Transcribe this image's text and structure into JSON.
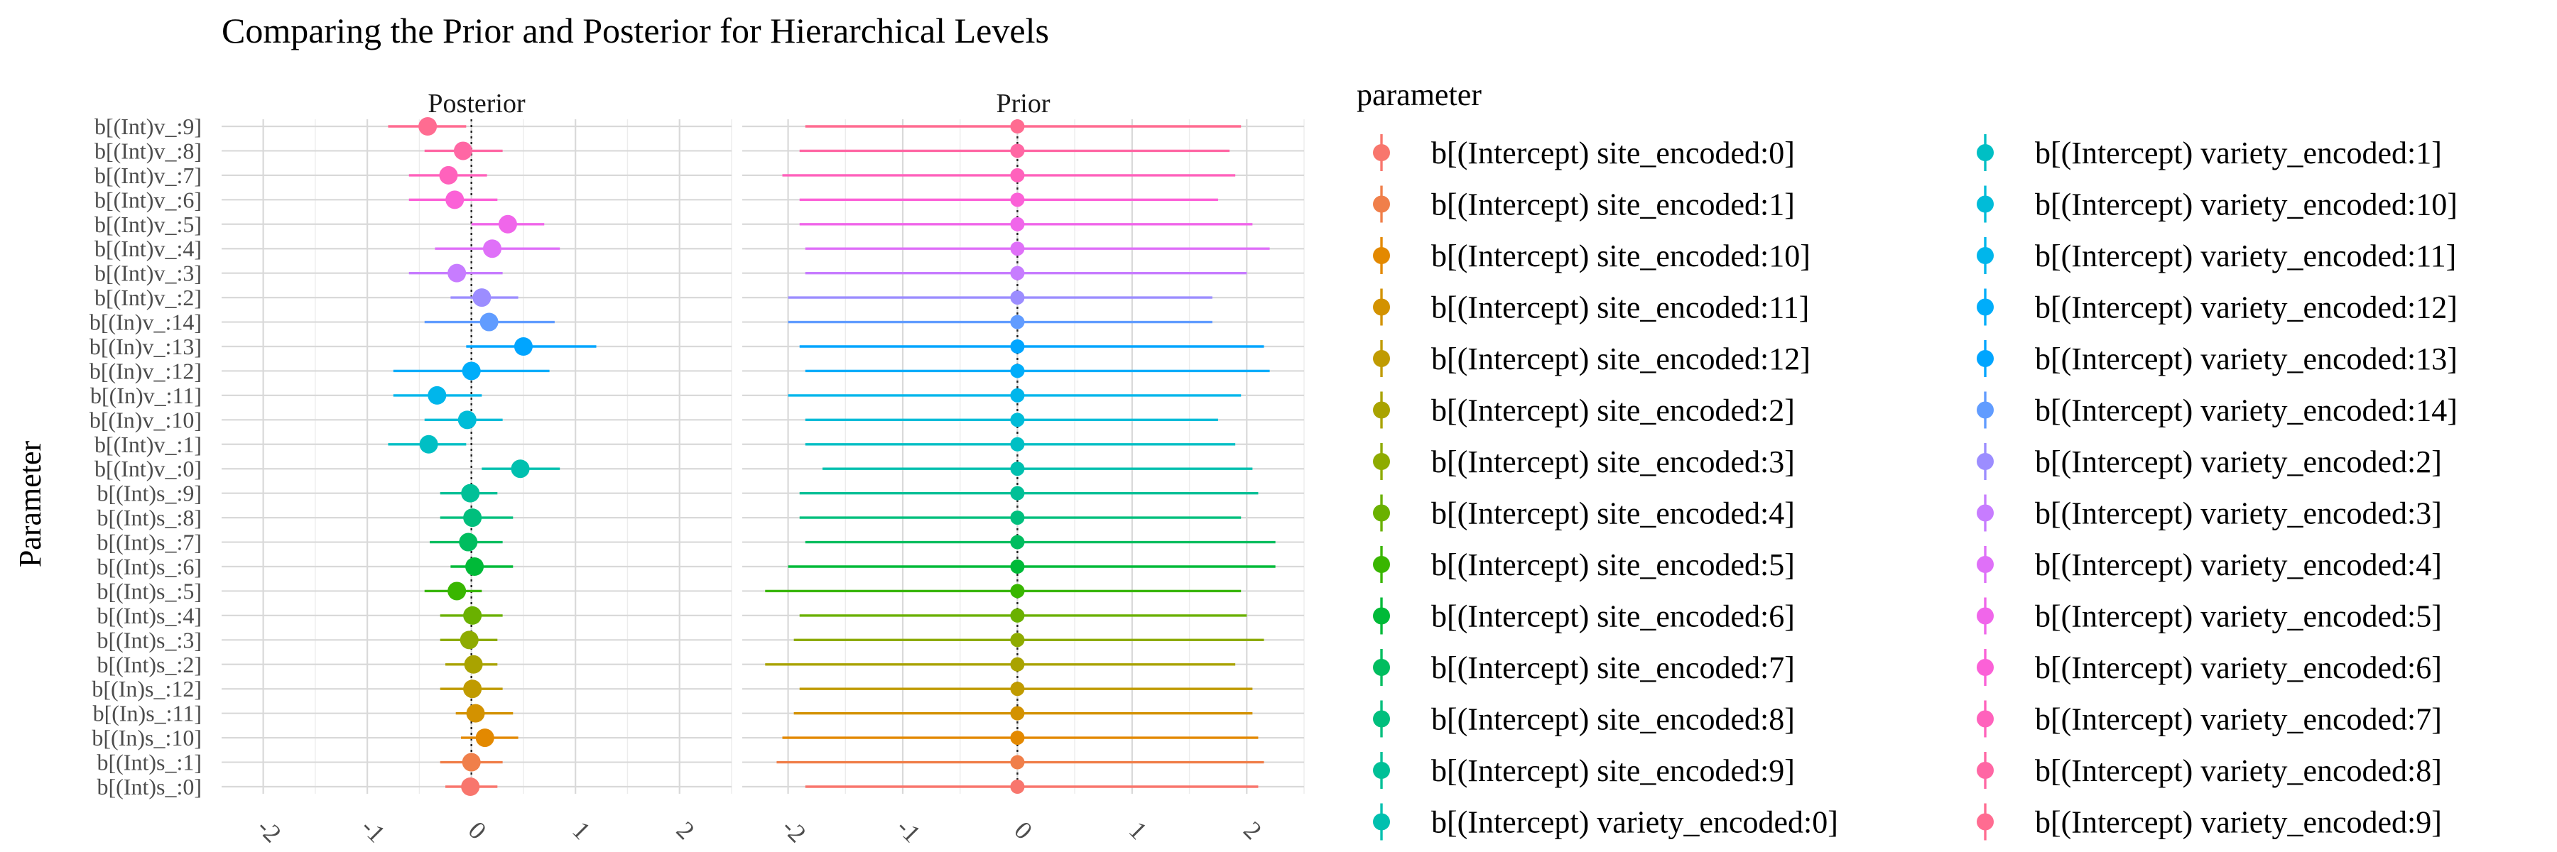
{
  "title": "Comparing the Prior and Posterior for Hierarchical Levels",
  "chart_data": {
    "type": "scatter",
    "title": "Comparing the Prior and Posterior for Hierarchical Levels",
    "ylabel": "Parameter",
    "xlim": [
      -2.4,
      2.5
    ],
    "xticks": [
      "-2",
      "-1",
      "0",
      "1",
      "2"
    ],
    "xtick_values": [
      -2,
      -1,
      0,
      1,
      2
    ],
    "reference_line": 0,
    "grid": true,
    "legend_title": "parameter",
    "legend_position": "right",
    "rows": [
      {
        "label": "b[(Int)v_:9]",
        "param": "b[(Intercept) variety_encoded:9]"
      },
      {
        "label": "b[(Int)v_:8]",
        "param": "b[(Intercept) variety_encoded:8]"
      },
      {
        "label": "b[(Int)v_:7]",
        "param": "b[(Intercept) variety_encoded:7]"
      },
      {
        "label": "b[(Int)v_:6]",
        "param": "b[(Intercept) variety_encoded:6]"
      },
      {
        "label": "b[(Int)v_:5]",
        "param": "b[(Intercept) variety_encoded:5]"
      },
      {
        "label": "b[(Int)v_:4]",
        "param": "b[(Intercept) variety_encoded:4]"
      },
      {
        "label": "b[(Int)v_:3]",
        "param": "b[(Intercept) variety_encoded:3]"
      },
      {
        "label": "b[(Int)v_:2]",
        "param": "b[(Intercept) variety_encoded:2]"
      },
      {
        "label": "b[(In)v_:14]",
        "param": "b[(Intercept) variety_encoded:14]"
      },
      {
        "label": "b[(In)v_:13]",
        "param": "b[(Intercept) variety_encoded:13]"
      },
      {
        "label": "b[(In)v_:12]",
        "param": "b[(Intercept) variety_encoded:12]"
      },
      {
        "label": "b[(In)v_:11]",
        "param": "b[(Intercept) variety_encoded:11]"
      },
      {
        "label": "b[(In)v_:10]",
        "param": "b[(Intercept) variety_encoded:10]"
      },
      {
        "label": "b[(Int)v_:1]",
        "param": "b[(Intercept) variety_encoded:1]"
      },
      {
        "label": "b[(Int)v_:0]",
        "param": "b[(Intercept) variety_encoded:0]"
      },
      {
        "label": "b[(Int)s_:9]",
        "param": "b[(Intercept) site_encoded:9]"
      },
      {
        "label": "b[(Int)s_:8]",
        "param": "b[(Intercept) site_encoded:8]"
      },
      {
        "label": "b[(Int)s_:7]",
        "param": "b[(Intercept) site_encoded:7]"
      },
      {
        "label": "b[(Int)s_:6]",
        "param": "b[(Intercept) site_encoded:6]"
      },
      {
        "label": "b[(Int)s_:5]",
        "param": "b[(Intercept) site_encoded:5]"
      },
      {
        "label": "b[(Int)s_:4]",
        "param": "b[(Intercept) site_encoded:4]"
      },
      {
        "label": "b[(Int)s_:3]",
        "param": "b[(Intercept) site_encoded:3]"
      },
      {
        "label": "b[(Int)s_:2]",
        "param": "b[(Intercept) site_encoded:2]"
      },
      {
        "label": "b[(In)s_:12]",
        "param": "b[(Intercept) site_encoded:12]"
      },
      {
        "label": "b[(In)s_:11]",
        "param": "b[(Intercept) site_encoded:11]"
      },
      {
        "label": "b[(In)s_:10]",
        "param": "b[(Intercept) site_encoded:10]"
      },
      {
        "label": "b[(Int)s_:1]",
        "param": "b[(Intercept) site_encoded:1]"
      },
      {
        "label": "b[(Int)s_:0]",
        "param": "b[(Intercept) site_encoded:0]"
      }
    ],
    "panels": [
      {
        "title": "Posterior",
        "estimates": [
          -0.42,
          -0.08,
          -0.22,
          -0.16,
          0.35,
          0.2,
          -0.14,
          0.1,
          0.17,
          0.5,
          0.0,
          -0.33,
          -0.04,
          -0.41,
          0.47,
          -0.01,
          0.01,
          -0.03,
          0.03,
          -0.14,
          0.01,
          -0.02,
          0.02,
          0.01,
          0.04,
          0.13,
          0.0,
          -0.01
        ],
        "lower": [
          -0.8,
          -0.45,
          -0.6,
          -0.6,
          0.0,
          -0.35,
          -0.6,
          -0.2,
          -0.45,
          -0.05,
          -0.75,
          -0.75,
          -0.45,
          -0.8,
          0.1,
          -0.3,
          -0.3,
          -0.4,
          -0.2,
          -0.45,
          -0.3,
          -0.3,
          -0.25,
          -0.3,
          -0.15,
          -0.1,
          -0.3,
          -0.25
        ],
        "upper": [
          -0.05,
          0.3,
          0.15,
          0.25,
          0.7,
          0.85,
          0.3,
          0.45,
          0.8,
          1.2,
          0.75,
          0.1,
          0.3,
          -0.05,
          0.85,
          0.25,
          0.4,
          0.3,
          0.4,
          0.1,
          0.3,
          0.25,
          0.25,
          0.3,
          0.4,
          0.45,
          0.3,
          0.25
        ]
      },
      {
        "title": "Prior",
        "estimates": [
          0,
          0,
          0,
          0,
          0,
          0,
          0,
          0,
          0,
          0,
          0,
          0,
          0,
          0,
          0,
          0,
          0,
          0,
          0,
          0,
          0,
          0,
          0,
          0,
          0,
          0,
          0,
          0
        ],
        "lower": [
          -1.85,
          -1.9,
          -2.05,
          -1.9,
          -1.9,
          -1.85,
          -1.85,
          -2.0,
          -2.0,
          -1.9,
          -1.85,
          -2.0,
          -1.85,
          -1.85,
          -1.7,
          -1.9,
          -1.9,
          -1.85,
          -2.0,
          -2.2,
          -1.9,
          -1.95,
          -2.2,
          -1.9,
          -1.95,
          -2.05,
          -2.1,
          -1.85
        ],
        "upper": [
          1.95,
          1.85,
          1.9,
          1.75,
          2.05,
          2.2,
          2.0,
          1.7,
          1.7,
          2.15,
          2.2,
          1.95,
          1.75,
          1.9,
          2.05,
          2.1,
          1.95,
          2.25,
          2.25,
          1.95,
          2.0,
          2.15,
          1.9,
          2.05,
          2.05,
          2.1,
          2.15,
          2.1
        ]
      }
    ],
    "legend": [
      {
        "label": "b[(Intercept) site_encoded:0]",
        "color": "#F8766D"
      },
      {
        "label": "b[(Intercept) site_encoded:1]",
        "color": "#F07F4A"
      },
      {
        "label": "b[(Intercept) site_encoded:10]",
        "color": "#E38900"
      },
      {
        "label": "b[(Intercept) site_encoded:11]",
        "color": "#D39200"
      },
      {
        "label": "b[(Intercept) site_encoded:12]",
        "color": "#C09B00"
      },
      {
        "label": "b[(Intercept) site_encoded:2]",
        "color": "#A9A300"
      },
      {
        "label": "b[(Intercept) site_encoded:3]",
        "color": "#8EAB00"
      },
      {
        "label": "b[(Intercept) site_encoded:4]",
        "color": "#6AB100"
      },
      {
        "label": "b[(Intercept) site_encoded:5]",
        "color": "#39B600"
      },
      {
        "label": "b[(Intercept) site_encoded:6]",
        "color": "#00BA38"
      },
      {
        "label": "b[(Intercept) site_encoded:7]",
        "color": "#00BD5F"
      },
      {
        "label": "b[(Intercept) site_encoded:8]",
        "color": "#00BF7D"
      },
      {
        "label": "b[(Intercept) site_encoded:9]",
        "color": "#00C097"
      },
      {
        "label": "b[(Intercept) variety_encoded:0]",
        "color": "#00C0AF"
      },
      {
        "label": "b[(Intercept) variety_encoded:1]",
        "color": "#00BFC4"
      },
      {
        "label": "b[(Intercept) variety_encoded:10]",
        "color": "#00BCD8"
      },
      {
        "label": "b[(Intercept) variety_encoded:11]",
        "color": "#00B6EB"
      },
      {
        "label": "b[(Intercept) variety_encoded:12]",
        "color": "#00ADFA"
      },
      {
        "label": "b[(Intercept) variety_encoded:13]",
        "color": "#00A5FF"
      },
      {
        "label": "b[(Intercept) variety_encoded:14]",
        "color": "#619CFF"
      },
      {
        "label": "b[(Intercept) variety_encoded:2]",
        "color": "#9C8DFF"
      },
      {
        "label": "b[(Intercept) variety_encoded:3]",
        "color": "#C77CFF"
      },
      {
        "label": "b[(Intercept) variety_encoded:4]",
        "color": "#DF70F8"
      },
      {
        "label": "b[(Intercept) variety_encoded:5]",
        "color": "#F066EA"
      },
      {
        "label": "b[(Intercept) variety_encoded:6]",
        "color": "#FB61D7"
      },
      {
        "label": "b[(Intercept) variety_encoded:7]",
        "color": "#FF62BC"
      },
      {
        "label": "b[(Intercept) variety_encoded:8]",
        "color": "#FF67A4"
      },
      {
        "label": "b[(Intercept) variety_encoded:9]",
        "color": "#FF6C91"
      }
    ]
  }
}
